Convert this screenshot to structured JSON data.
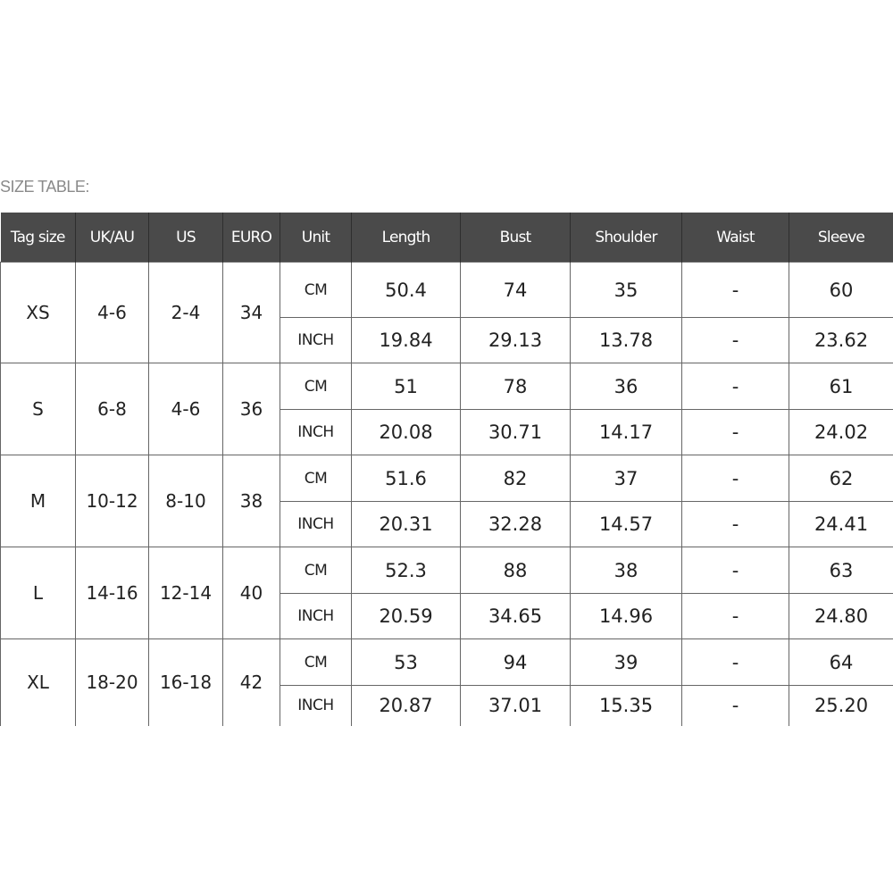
{
  "title": "SIZE TABLE:",
  "colors": {
    "header_bg": "#4a4a4a",
    "header_text": "#ffffff",
    "border": "#666666"
  },
  "headers": [
    "Tag size",
    "UK/AU",
    "US",
    "EURO",
    "Unit",
    "Length",
    "Bust",
    "Shoulder",
    "Waist",
    "Sleeve"
  ],
  "rows": [
    {
      "tag": "XS",
      "uk_au": "4-6",
      "us": "2-4",
      "euro": "34",
      "units": [
        {
          "unit": "CM",
          "values": [
            "50.4",
            "74",
            "35",
            "-",
            "60"
          ]
        },
        {
          "unit": "INCH",
          "values": [
            "19.84",
            "29.13",
            "13.78",
            "-",
            "23.62"
          ]
        }
      ]
    },
    {
      "tag": "S",
      "uk_au": "6-8",
      "us": "4-6",
      "euro": "36",
      "units": [
        {
          "unit": "CM",
          "values": [
            "51",
            "78",
            "36",
            "-",
            "61"
          ]
        },
        {
          "unit": "INCH",
          "values": [
            "20.08",
            "30.71",
            "14.17",
            "-",
            "24.02"
          ]
        }
      ]
    },
    {
      "tag": "M",
      "uk_au": "10-12",
      "us": "8-10",
      "euro": "38",
      "units": [
        {
          "unit": "CM",
          "values": [
            "51.6",
            "82",
            "37",
            "-",
            "62"
          ]
        },
        {
          "unit": "INCH",
          "values": [
            "20.31",
            "32.28",
            "14.57",
            "-",
            "24.41"
          ]
        }
      ]
    },
    {
      "tag": "L",
      "uk_au": "14-16",
      "us": "12-14",
      "euro": "40",
      "units": [
        {
          "unit": "CM",
          "values": [
            "52.3",
            "88",
            "38",
            "-",
            "63"
          ]
        },
        {
          "unit": "INCH",
          "values": [
            "20.59",
            "34.65",
            "14.96",
            "-",
            "24.80"
          ]
        }
      ]
    },
    {
      "tag": "XL",
      "uk_au": "18-20",
      "us": "16-18",
      "euro": "42",
      "units": [
        {
          "unit": "CM",
          "values": [
            "53",
            "94",
            "39",
            "-",
            "64"
          ]
        },
        {
          "unit": "INCH",
          "values": [
            "20.87",
            "37.01",
            "15.35",
            "-",
            "25.20"
          ]
        }
      ]
    }
  ]
}
